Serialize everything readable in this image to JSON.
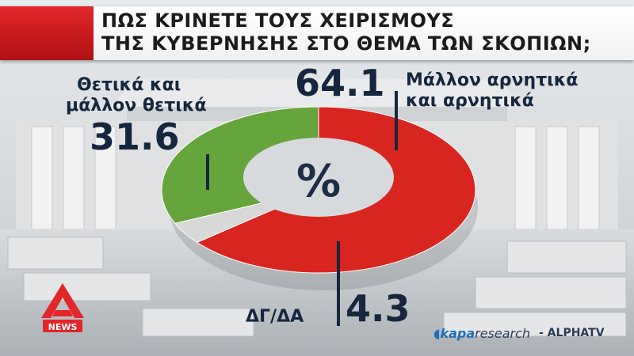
{
  "title": {
    "line1": "ΠΩΣ ΚΡΙΝΕΤΕ ΤΟΥΣ ΧΕΙΡΙΣΜΟΥΣ",
    "line2": "ΤΗΣ ΚΥΒΕΡΝΗΣΗΣ ΣΤΟ ΘΕΜΑ ΤΩΝ ΣΚΟΠΙΩΝ;"
  },
  "center_label": "%",
  "labels": {
    "positive_text_1": "Θετικά και",
    "positive_text_2": "μάλλον θετικά",
    "positive_value": "31.6",
    "negative_text_1": "Μάλλον αρνητικά",
    "negative_text_2": "και αρνητικά",
    "negative_value": "64.1",
    "dk_text": "ΔΓ/ΔΑ",
    "dk_value": "4.3"
  },
  "branding": {
    "logo_text": "NEWS",
    "research_prefix": "kapa",
    "research_suffix": "research",
    "channel": "- ALPHATV"
  },
  "colors": {
    "negative": "#d9251f",
    "positive": "#66a43c",
    "dk": "#d8d8d8",
    "accent": "#d8252a"
  },
  "chart_data": {
    "type": "pie",
    "title": "ΠΩΣ ΚΡΙΝΕΤΕ ΤΟΥΣ ΧΕΙΡΙΣΜΟΥΣ ΤΗΣ ΚΥΒΕΡΝΗΣΗΣ ΣΤΟ ΘΕΜΑ ΤΩΝ ΣΚΟΠΙΩΝ;",
    "unit": "%",
    "categories": [
      "Μάλλον αρνητικά και αρνητικά",
      "ΔΓ/ΔΑ",
      "Θετικά και μάλλον θετικά"
    ],
    "values": [
      64.1,
      4.3,
      31.6
    ]
  }
}
